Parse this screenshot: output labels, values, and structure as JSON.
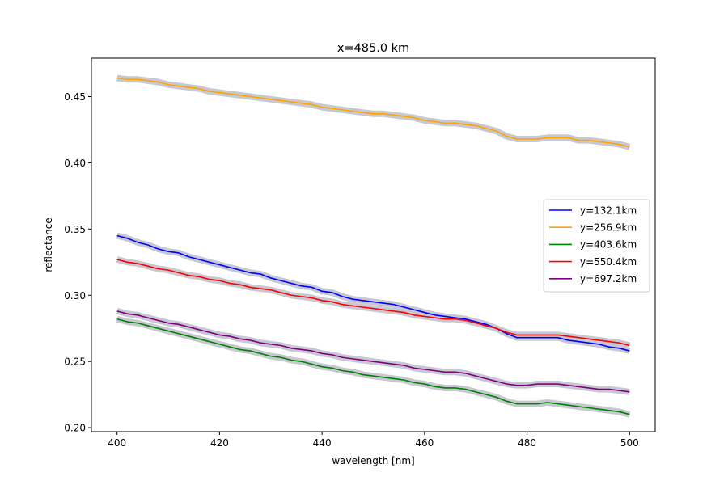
{
  "chart_data": {
    "type": "line",
    "title": "x=485.0 km",
    "xlabel": "wavelength [nm]",
    "ylabel": "reflectance",
    "xlim": [
      395,
      505
    ],
    "ylim": [
      0.197,
      0.479
    ],
    "xticks": [
      400,
      420,
      440,
      460,
      480,
      500
    ],
    "xtick_labels": [
      "400",
      "420",
      "440",
      "460",
      "480",
      "500"
    ],
    "yticks": [
      0.2,
      0.25,
      0.3,
      0.35,
      0.4,
      0.45
    ],
    "ytick_labels": [
      "0.20",
      "0.25",
      "0.30",
      "0.35",
      "0.40",
      "0.45"
    ],
    "grid": false,
    "legend_position": "right",
    "band_color": "#c8c8d2",
    "x": [
      400,
      402,
      404,
      406,
      408,
      410,
      412,
      414,
      416,
      418,
      420,
      422,
      424,
      426,
      428,
      430,
      432,
      434,
      436,
      438,
      440,
      442,
      444,
      446,
      448,
      450,
      452,
      454,
      456,
      458,
      460,
      462,
      464,
      466,
      468,
      470,
      472,
      474,
      476,
      478,
      480,
      482,
      484,
      486,
      488,
      490,
      492,
      494,
      496,
      498,
      500
    ],
    "series": [
      {
        "name": "y=132.1km",
        "color": "#0000ff",
        "values": [
          0.345,
          0.343,
          0.34,
          0.338,
          0.335,
          0.333,
          0.332,
          0.329,
          0.327,
          0.325,
          0.323,
          0.321,
          0.319,
          0.317,
          0.316,
          0.313,
          0.311,
          0.309,
          0.307,
          0.306,
          0.303,
          0.302,
          0.299,
          0.297,
          0.296,
          0.295,
          0.294,
          0.293,
          0.291,
          0.289,
          0.287,
          0.285,
          0.284,
          0.283,
          0.282,
          0.28,
          0.278,
          0.275,
          0.271,
          0.268,
          0.268,
          0.268,
          0.268,
          0.268,
          0.266,
          0.265,
          0.264,
          0.263,
          0.261,
          0.26,
          0.258
        ]
      },
      {
        "name": "y=256.9km",
        "color": "#ffa500",
        "values": [
          0.464,
          0.463,
          0.463,
          0.462,
          0.461,
          0.459,
          0.458,
          0.457,
          0.456,
          0.454,
          0.453,
          0.452,
          0.451,
          0.45,
          0.449,
          0.448,
          0.447,
          0.446,
          0.445,
          0.444,
          0.442,
          0.441,
          0.44,
          0.439,
          0.438,
          0.437,
          0.437,
          0.436,
          0.435,
          0.434,
          0.432,
          0.431,
          0.43,
          0.43,
          0.429,
          0.428,
          0.426,
          0.424,
          0.42,
          0.418,
          0.418,
          0.418,
          0.419,
          0.419,
          0.419,
          0.417,
          0.417,
          0.416,
          0.415,
          0.414,
          0.412
        ]
      },
      {
        "name": "y=403.6km",
        "color": "#008000",
        "values": [
          0.282,
          0.28,
          0.279,
          0.277,
          0.275,
          0.273,
          0.271,
          0.269,
          0.267,
          0.265,
          0.263,
          0.261,
          0.259,
          0.258,
          0.256,
          0.254,
          0.253,
          0.251,
          0.25,
          0.248,
          0.246,
          0.245,
          0.243,
          0.242,
          0.24,
          0.239,
          0.238,
          0.237,
          0.236,
          0.234,
          0.233,
          0.231,
          0.23,
          0.23,
          0.229,
          0.227,
          0.225,
          0.223,
          0.22,
          0.218,
          0.218,
          0.218,
          0.219,
          0.218,
          0.217,
          0.216,
          0.215,
          0.214,
          0.213,
          0.212,
          0.21
        ]
      },
      {
        "name": "y=550.4km",
        "color": "#ff0000",
        "values": [
          0.327,
          0.325,
          0.324,
          0.322,
          0.32,
          0.319,
          0.317,
          0.315,
          0.314,
          0.312,
          0.311,
          0.309,
          0.308,
          0.306,
          0.305,
          0.304,
          0.302,
          0.3,
          0.299,
          0.298,
          0.296,
          0.295,
          0.293,
          0.292,
          0.291,
          0.29,
          0.289,
          0.288,
          0.287,
          0.285,
          0.284,
          0.283,
          0.282,
          0.282,
          0.281,
          0.279,
          0.277,
          0.275,
          0.272,
          0.27,
          0.27,
          0.27,
          0.27,
          0.27,
          0.269,
          0.268,
          0.267,
          0.266,
          0.265,
          0.264,
          0.262
        ]
      },
      {
        "name": "y=697.2km",
        "color": "#800080",
        "values": [
          0.288,
          0.286,
          0.285,
          0.283,
          0.281,
          0.279,
          0.278,
          0.276,
          0.274,
          0.272,
          0.27,
          0.269,
          0.267,
          0.266,
          0.264,
          0.263,
          0.262,
          0.26,
          0.259,
          0.258,
          0.256,
          0.255,
          0.253,
          0.252,
          0.251,
          0.25,
          0.249,
          0.248,
          0.247,
          0.245,
          0.244,
          0.243,
          0.242,
          0.242,
          0.241,
          0.239,
          0.237,
          0.235,
          0.233,
          0.232,
          0.232,
          0.233,
          0.233,
          0.233,
          0.232,
          0.231,
          0.23,
          0.229,
          0.229,
          0.228,
          0.227
        ]
      }
    ]
  }
}
